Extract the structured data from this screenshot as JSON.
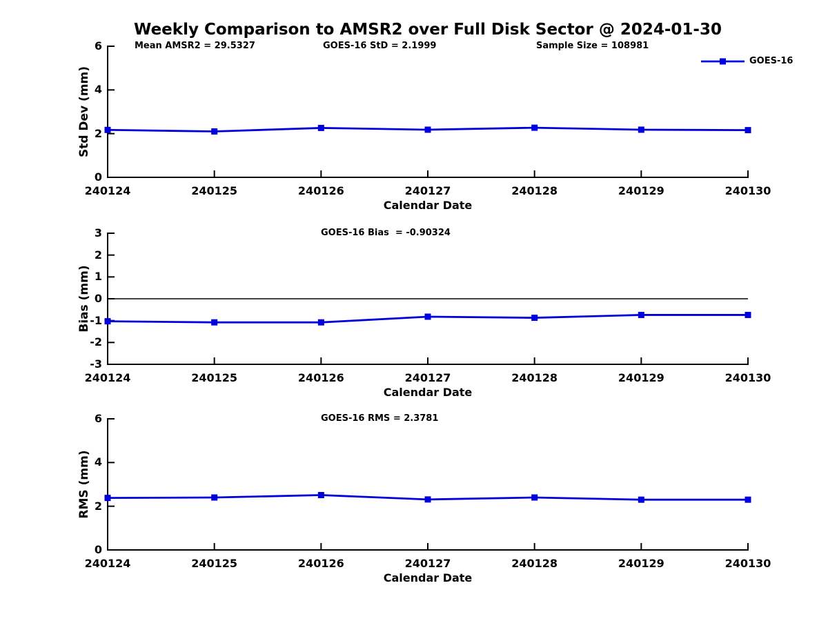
{
  "page_title": "Weekly Comparison to AMSR2 over Full Disk Sector @ 2024-01-30",
  "chart_data": [
    {
      "type": "line",
      "name": "std-dev-subplot",
      "categories": [
        "240124",
        "240125",
        "240126",
        "240127",
        "240128",
        "240129",
        "240130"
      ],
      "series": [
        {
          "name": "GOES-16",
          "values": [
            2.17,
            2.1,
            2.26,
            2.18,
            2.27,
            2.18,
            2.16
          ]
        }
      ],
      "annotations": [
        "Mean AMSR2 = 29.5327",
        "GOES-16 StD = 2.1999",
        "Sample Size = 108981"
      ],
      "xlabel": "Calendar Date",
      "ylabel": "Std Dev (mm)",
      "ylim": [
        0,
        6
      ],
      "yticks": [
        0,
        2,
        4,
        6
      ],
      "zero_line": false,
      "grid": false,
      "legend": {
        "label": "GOES-16",
        "position": "top-right"
      },
      "line_color": "#0000dd",
      "marker": "square"
    },
    {
      "type": "line",
      "name": "bias-subplot",
      "categories": [
        "240124",
        "240125",
        "240126",
        "240127",
        "240128",
        "240129",
        "240130"
      ],
      "series": [
        {
          "name": "GOES-16",
          "values": [
            -1.03,
            -1.08,
            -1.08,
            -0.82,
            -0.87,
            -0.74,
            -0.74
          ]
        }
      ],
      "annotations": [
        "GOES-16 Bias  = -0.90324"
      ],
      "xlabel": "Calendar Date",
      "ylabel": "Bias (mm)",
      "ylim": [
        -3,
        3
      ],
      "yticks": [
        -3,
        -2,
        -1,
        0,
        1,
        2,
        3
      ],
      "zero_line": true,
      "grid": false,
      "legend": null,
      "line_color": "#0000dd",
      "marker": "square"
    },
    {
      "type": "line",
      "name": "rms-subplot",
      "categories": [
        "240124",
        "240125",
        "240126",
        "240127",
        "240128",
        "240129",
        "240130"
      ],
      "series": [
        {
          "name": "GOES-16",
          "values": [
            2.38,
            2.4,
            2.51,
            2.31,
            2.4,
            2.3,
            2.3
          ]
        }
      ],
      "annotations": [
        "GOES-16 RMS = 2.3781"
      ],
      "xlabel": "Calendar Date",
      "ylabel": "RMS (mm)",
      "ylim": [
        0,
        6
      ],
      "yticks": [
        0,
        2,
        4,
        6
      ],
      "zero_line": false,
      "grid": false,
      "legend": null,
      "line_color": "#0000dd",
      "marker": "square"
    }
  ],
  "colors": {
    "series_blue": "#0000dd",
    "axis_black": "#000000",
    "background": "#ffffff"
  }
}
